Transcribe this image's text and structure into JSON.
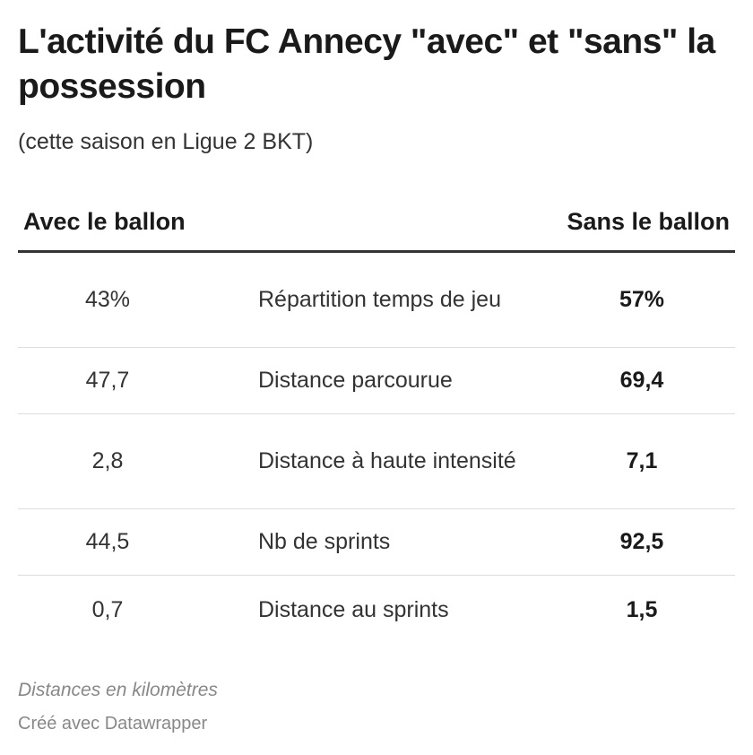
{
  "header": {
    "title": "L'activité du FC Annecy \"avec\" et \"sans\" la possession",
    "subtitle": "(cette saison en Ligue 2 BKT)"
  },
  "chart_data": {
    "type": "table",
    "columns": [
      "Avec le ballon",
      "",
      "Sans le ballon"
    ],
    "rows": [
      {
        "avec": "43%",
        "metric": "Répartition temps de jeu",
        "sans": "57%"
      },
      {
        "avec": "47,7",
        "metric": "Distance parcourue",
        "sans": "69,4"
      },
      {
        "avec": "2,8",
        "metric": "Distance à haute intensité",
        "sans": "7,1"
      },
      {
        "avec": "44,5",
        "metric": "Nb de sprints",
        "sans": "92,5"
      },
      {
        "avec": "0,7",
        "metric": "Distance au sprints",
        "sans": "1,5"
      }
    ]
  },
  "footer": {
    "notes": "Distances en kilomètres",
    "credit": "Créé avec Datawrapper"
  }
}
